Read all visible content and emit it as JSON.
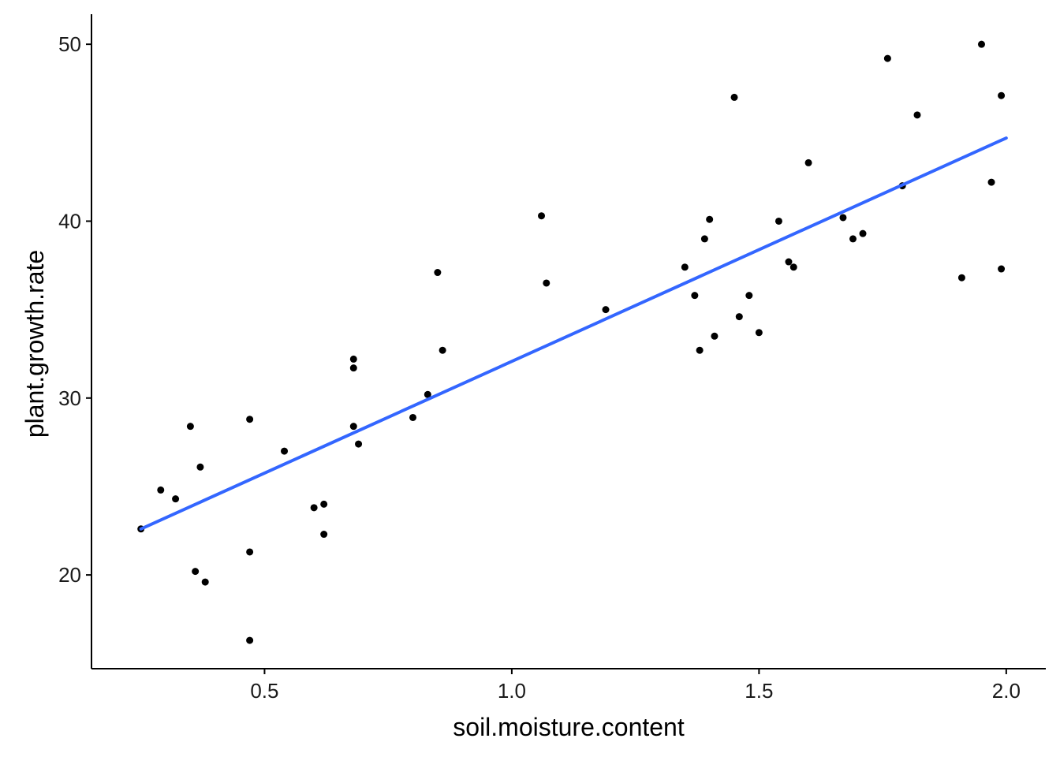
{
  "chart_data": {
    "type": "scatter",
    "title": "",
    "xlabel": "soil.moisture.content",
    "ylabel": "plant.growth.rate",
    "xlim": [
      0.15,
      2.08
    ],
    "ylim": [
      14.7,
      51.7
    ],
    "xticks": [
      0.5,
      1.0,
      1.5,
      2.0
    ],
    "xtick_labels": [
      "0.5",
      "1.0",
      "1.5",
      "2.0"
    ],
    "yticks": [
      20,
      30,
      40,
      50
    ],
    "ytick_labels": [
      "20",
      "30",
      "40",
      "50"
    ],
    "grid": false,
    "legend": "none",
    "point_color": "#000000",
    "trend_color": "#3366FF",
    "trend_line": {
      "x": [
        0.25,
        2.0
      ],
      "y": [
        22.6,
        44.7
      ]
    },
    "series": [
      {
        "x": [
          0.25,
          0.29,
          0.32,
          0.35,
          0.36,
          0.37,
          0.38,
          0.47,
          0.47,
          0.47,
          0.54,
          0.6,
          0.62,
          0.62,
          0.68,
          0.68,
          0.68,
          0.69,
          0.8,
          0.83,
          0.85,
          0.86,
          1.06,
          1.07,
          1.19,
          1.35,
          1.37,
          1.38,
          1.39,
          1.4,
          1.41,
          1.45,
          1.46,
          1.48,
          1.5,
          1.54,
          1.56,
          1.57,
          1.6,
          1.67,
          1.69,
          1.71,
          1.76,
          1.79,
          1.82,
          1.91,
          1.95,
          1.97,
          1.99,
          1.99
        ],
        "y": [
          22.6,
          24.8,
          24.3,
          28.4,
          20.2,
          26.1,
          19.6,
          21.3,
          28.8,
          16.3,
          27.0,
          23.8,
          24.0,
          22.3,
          28.4,
          31.7,
          32.2,
          27.4,
          28.9,
          30.2,
          37.1,
          32.7,
          40.3,
          36.5,
          35.0,
          37.4,
          35.8,
          32.7,
          39.0,
          40.1,
          33.5,
          47.0,
          34.6,
          35.8,
          33.7,
          40.0,
          37.7,
          37.4,
          43.3,
          40.2,
          39.0,
          39.3,
          49.2,
          42.0,
          46.0,
          36.8,
          50.0,
          42.2,
          47.1,
          37.3
        ]
      }
    ]
  }
}
